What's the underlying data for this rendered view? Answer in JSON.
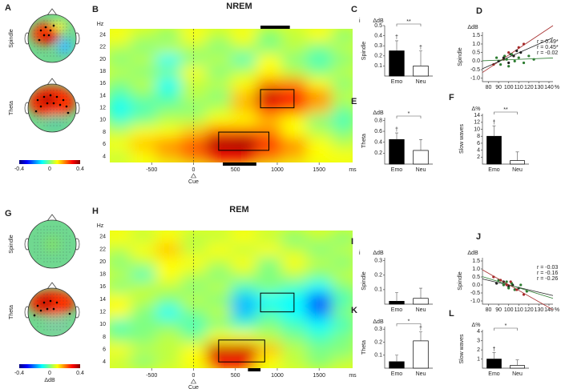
{
  "chart_data": [
    {
      "type": "topomap",
      "panel": "A",
      "maps": [
        "Spindle",
        "Theta"
      ],
      "condition": "NREM",
      "colorbar": {
        "lim": [
          -0.4,
          0.4
        ],
        "ticks": [
          -0.4,
          0,
          0.4
        ]
      }
    },
    {
      "type": "heatmap",
      "panel": "B",
      "title": "NREM",
      "y_label": "Hz",
      "x_unit": "ms",
      "cue": "Cue",
      "xlim": [
        -1000,
        1900
      ],
      "ylim": [
        3,
        25
      ],
      "xticks": [
        -500,
        0,
        500,
        1000,
        1500
      ],
      "yticks": [
        4,
        6,
        8,
        10,
        12,
        14,
        16,
        18,
        20,
        22,
        24
      ],
      "clim": [
        -0.4,
        0.4
      ],
      "x": [
        -900,
        -600,
        -300,
        0,
        300,
        600,
        900,
        1200,
        1500,
        1800
      ],
      "y": [
        4,
        6,
        8,
        10,
        12,
        14,
        16,
        18,
        20,
        22,
        24
      ],
      "values": [
        [
          0.05,
          0.1,
          0.15,
          0.2,
          0.3,
          0.3,
          0.2,
          0.15,
          0.1,
          0.1
        ],
        [
          0.1,
          0.15,
          0.2,
          0.25,
          0.38,
          0.4,
          0.3,
          0.2,
          0.1,
          0.05
        ],
        [
          0.05,
          0.1,
          0.1,
          0.15,
          0.25,
          0.25,
          0.2,
          0.1,
          0.05,
          0
        ],
        [
          -0.05,
          0,
          0.05,
          0.05,
          0.1,
          0.1,
          0.15,
          0.1,
          0,
          -0.05
        ],
        [
          -0.1,
          -0.05,
          0,
          0,
          0.05,
          0.15,
          0.3,
          0.25,
          0.15,
          0
        ],
        [
          -0.05,
          0,
          -0.05,
          0.05,
          0,
          0.15,
          0.35,
          0.3,
          0.2,
          0.05
        ],
        [
          0,
          0.05,
          -0.1,
          0.05,
          0.05,
          0.1,
          0.2,
          0.2,
          0.1,
          0
        ],
        [
          0.05,
          0,
          0,
          0.1,
          0,
          0.05,
          0.1,
          0.05,
          0,
          0.05
        ],
        [
          0,
          0.05,
          -0.1,
          0,
          0.05,
          -0.05,
          0.1,
          0,
          -0.05,
          0
        ],
        [
          0.05,
          0,
          0.05,
          0.05,
          0,
          0.05,
          0,
          0.05,
          0,
          0.05
        ],
        [
          0.1,
          0.05,
          0,
          0.1,
          0.05,
          0.1,
          0,
          0.05,
          0.1,
          0
        ]
      ],
      "boxes": [
        {
          "x": [
            300,
            900
          ],
          "y": [
            5,
            8
          ]
        },
        {
          "x": [
            800,
            1200
          ],
          "y": [
            12,
            15
          ]
        }
      ],
      "bars": [
        {
          "x": [
            800,
            1150
          ],
          "edge": "top"
        },
        {
          "x": [
            350,
            750
          ],
          "edge": "bottom"
        }
      ]
    },
    {
      "type": "bar",
      "panel": "C",
      "sub": "i",
      "unit": "ΔdB",
      "y_label": "Spindle",
      "categories": [
        "Emo",
        "Neu"
      ],
      "values": [
        0.25,
        0.1
      ],
      "errors": [
        0.1,
        0.15
      ],
      "colors": [
        "#000000",
        "#ffffff"
      ],
      "markers": [
        "†",
        "†"
      ],
      "significance": "**",
      "ylim": [
        0,
        0.5
      ],
      "yticks": [
        0.1,
        0.2,
        0.3,
        0.4,
        0.5
      ]
    },
    {
      "type": "bar",
      "panel": "E",
      "unit": "ΔdB",
      "y_label": "Theta",
      "categories": [
        "Emo",
        "Neu"
      ],
      "values": [
        0.45,
        0.25
      ],
      "errors": [
        0.12,
        0.2
      ],
      "colors": [
        "#000000",
        "#ffffff"
      ],
      "markers": [
        "†",
        null
      ],
      "significance": "*",
      "ylim": [
        0,
        0.85
      ],
      "yticks": [
        0.2,
        0.4,
        0.6,
        0.8
      ]
    },
    {
      "type": "scatter",
      "panel": "D",
      "unit": "ΔdB",
      "y_label": "Spindle",
      "x_unit": "%",
      "xlim": [
        74,
        144
      ],
      "ylim": [
        -1.2,
        1.7
      ],
      "xticks": [
        80,
        90,
        100,
        110,
        120,
        130,
        140
      ],
      "yticks": [
        {
          "value": -1,
          "label": "-1.0"
        },
        -0.5,
        {
          "value": 0,
          "label": "0.0"
        },
        0.5,
        {
          "value": 1,
          "label": "1.0"
        },
        1.5
      ],
      "series": [
        {
          "name": "r = 0.49*",
          "color": "#a52a2a",
          "x": [
            85,
            95,
            100,
            105,
            110,
            115
          ],
          "values": [
            -0.2,
            0.1,
            0.5,
            0.3,
            0.8,
            1.0
          ]
        },
        {
          "name": "r = 0.45*",
          "color": "#222222",
          "x": [
            90,
            95,
            100,
            102,
            105,
            108,
            112
          ],
          "values": [
            0,
            0.2,
            -0.1,
            0.4,
            0.3,
            0.6,
            0.5
          ]
        },
        {
          "name": "r = -0.02",
          "color": "#2e7d32",
          "x": [
            88,
            92,
            96,
            98,
            100,
            103,
            106,
            110,
            115,
            120,
            125
          ],
          "values": [
            0.2,
            -0.2,
            0.3,
            0.1,
            -0.3,
            0.4,
            0,
            0.2,
            -0.1,
            0.3,
            0.1
          ]
        }
      ]
    },
    {
      "type": "bar",
      "panel": "F",
      "unit": "Δ%",
      "y_label": "Slow waves",
      "categories": [
        "Emo",
        "Neu"
      ],
      "values": [
        8,
        1
      ],
      "errors": [
        3,
        2.5
      ],
      "colors": [
        "#000000",
        "#ffffff"
      ],
      "markers": [
        "†",
        null
      ],
      "significance": "**",
      "ylim": [
        0,
        14.5
      ],
      "yticks": [
        2,
        4,
        6,
        8,
        10,
        12,
        14
      ]
    },
    {
      "type": "topomap",
      "panel": "G",
      "maps": [
        "Spindle",
        "Theta"
      ],
      "condition": "REM",
      "colorbar": {
        "lim": [
          -0.4,
          0.4
        ],
        "ticks": [
          -0.4,
          0,
          0.4
        ],
        "label": "ΔdB"
      }
    },
    {
      "type": "heatmap",
      "panel": "H",
      "title": "REM",
      "y_label": "Hz",
      "x_unit": "ms",
      "cue": "Cue",
      "xlim": [
        -1000,
        1900
      ],
      "ylim": [
        3,
        25
      ],
      "xticks": [
        -500,
        0,
        500,
        1000,
        1500
      ],
      "yticks": [
        4,
        6,
        8,
        10,
        12,
        14,
        16,
        18,
        20,
        22,
        24
      ],
      "clim": [
        -0.4,
        0.4
      ],
      "x": [
        -900,
        -600,
        -300,
        0,
        300,
        600,
        900,
        1200,
        1500,
        1800
      ],
      "y": [
        4,
        6,
        8,
        10,
        12,
        14,
        16,
        18,
        20,
        22,
        24
      ],
      "values": [
        [
          0.05,
          0,
          0.05,
          0.1,
          0.3,
          0.3,
          0.1,
          0.05,
          0,
          0.05
        ],
        [
          0.1,
          0.05,
          0.05,
          0.1,
          0.35,
          0.35,
          0.15,
          0.05,
          0,
          0
        ],
        [
          0,
          0,
          0.05,
          0,
          0.1,
          0.1,
          0.05,
          0,
          -0.05,
          0
        ],
        [
          -0.05,
          0,
          0,
          -0.05,
          0,
          -0.05,
          0,
          -0.05,
          -0.1,
          -0.05
        ],
        [
          0.1,
          0,
          -0.1,
          0,
          0.05,
          -0.15,
          -0.05,
          -0.1,
          -0.2,
          0
        ],
        [
          0.1,
          0.05,
          0,
          0.05,
          0,
          -0.15,
          -0.1,
          -0.1,
          -0.25,
          -0.05
        ],
        [
          0,
          0.05,
          0.05,
          0,
          0.05,
          -0.05,
          0,
          -0.05,
          -0.1,
          0
        ],
        [
          0.05,
          -0.05,
          0.1,
          0.05,
          0,
          0.05,
          0,
          0.05,
          0,
          0.05
        ],
        [
          0,
          0.05,
          0.1,
          0.1,
          0.05,
          0.1,
          0,
          0.1,
          0.05,
          0
        ],
        [
          0.05,
          0.1,
          0.15,
          0.05,
          0.1,
          0.05,
          0.1,
          0.05,
          0,
          0.05
        ],
        [
          0.1,
          0.05,
          0.1,
          0.05,
          0.05,
          0.1,
          0.05,
          0,
          0.05,
          0
        ]
      ],
      "boxes": [
        {
          "x": [
            300,
            850
          ],
          "y": [
            4,
            7.5
          ]
        },
        {
          "x": [
            800,
            1200
          ],
          "y": [
            12,
            15
          ]
        }
      ],
      "bars": [
        {
          "x": [
            650,
            800
          ],
          "edge": "bottom"
        }
      ]
    },
    {
      "type": "bar",
      "panel": "I",
      "sub": "i",
      "unit": "ΔdB",
      "y_label": "Spindle",
      "categories": [
        "Emo",
        "Neu"
      ],
      "values": [
        0.02,
        0.04
      ],
      "errors": [
        0.06,
        0.07
      ],
      "colors": [
        "#000000",
        "#ffffff"
      ],
      "ylim": [
        0,
        0.32
      ],
      "yticks": [
        0.1,
        0.2,
        0.3
      ]
    },
    {
      "type": "bar",
      "panel": "K",
      "unit": "ΔdB",
      "y_label": "Theta",
      "categories": [
        "Emo",
        "Neu"
      ],
      "values": [
        0.05,
        0.21
      ],
      "errors": [
        0.05,
        0.07
      ],
      "colors": [
        "#000000",
        "#ffffff"
      ],
      "markers": [
        null,
        "†"
      ],
      "significance": "*",
      "ylim": [
        0,
        0.32
      ],
      "yticks": [
        0.1,
        0.2,
        0.3
      ]
    },
    {
      "type": "scatter",
      "panel": "J",
      "unit": "ΔdB",
      "y_label": "Spindle",
      "x_unit": "%",
      "xlim": [
        74,
        144
      ],
      "ylim": [
        -1.2,
        1.7
      ],
      "xticks": [
        80,
        90,
        100,
        110,
        120,
        130,
        140
      ],
      "yticks": [
        {
          "value": -1,
          "label": "-1.0"
        },
        -0.5,
        {
          "value": 0,
          "label": "0.0"
        },
        0.5,
        {
          "value": 1,
          "label": "1.0"
        },
        1.5
      ],
      "series": [
        {
          "name": "r = -0.03",
          "color": "#222222",
          "x": [
            88,
            95,
            100,
            104,
            110
          ],
          "values": [
            0.1,
            0.2,
            -0.1,
            0,
            -0.2
          ]
        },
        {
          "name": "r = -0.16",
          "color": "#2e7d32",
          "x": [
            90,
            95,
            98,
            100,
            103,
            106,
            112,
            118
          ],
          "values": [
            0.3,
            0,
            0.2,
            -0.2,
            0.1,
            -0.3,
            0,
            -0.4
          ]
        },
        {
          "name": "r = -0.26",
          "color": "#a52a2a",
          "x": [
            85,
            92,
            98,
            102,
            108,
            115
          ],
          "values": [
            0.5,
            0.3,
            0,
            0.2,
            -0.3,
            -0.6
          ]
        }
      ]
    },
    {
      "type": "bar",
      "panel": "L",
      "unit": "Δ%",
      "y_label": "Slow waves",
      "categories": [
        "Emo",
        "Neu"
      ],
      "values": [
        1.0,
        0.3
      ],
      "errors": [
        0.7,
        0.6
      ],
      "colors": [
        "#000000",
        "#ffffff"
      ],
      "markers": [
        "†",
        null
      ],
      "significance": "*",
      "ylim": [
        0,
        4.2
      ],
      "yticks": [
        1,
        2,
        3,
        4
      ]
    }
  ]
}
